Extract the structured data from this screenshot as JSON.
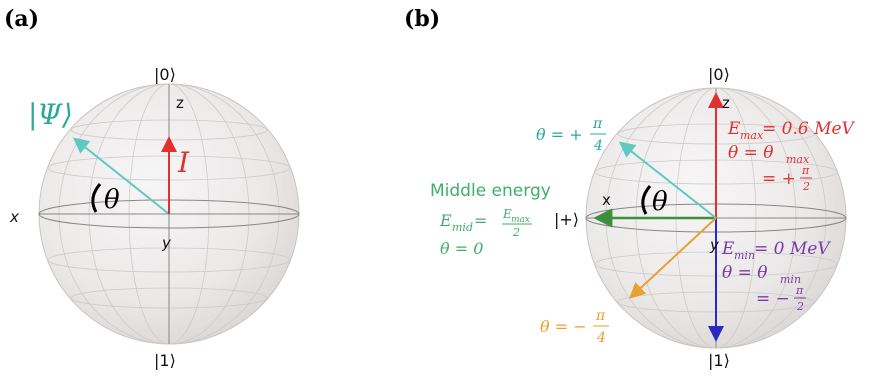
{
  "panel_a": {
    "label": "(a)",
    "ket_top": "|0⟩",
    "ket_bottom": "|1⟩",
    "axis_z": "z",
    "axis_x": "x",
    "axis_y": "y",
    "psi_label": "|Ψ⟩",
    "current_label": "I",
    "theta_label": "θ"
  },
  "panel_b": {
    "label": "(b)",
    "ket_top": "|0⟩",
    "ket_bottom": "|1⟩",
    "ket_plus": "|+⟩",
    "axis_z": "z",
    "axis_x": "x",
    "axis_y": "y",
    "theta_label": "θ",
    "theta_pos": "θ = +",
    "theta_neg": "θ = −",
    "pi": "π",
    "four": "4",
    "two": "2",
    "middle_title": "Middle energy",
    "emid_left": "E",
    "emid_sub": "mid",
    "emid_eq": " = ",
    "emax_frac_num": "E",
    "emax_frac_sub": "max",
    "theta_zero": "θ = 0",
    "emax_line1": "E",
    "emax_sub": "max",
    "emax_val": " = 0.6 MeV",
    "emax_line2": "θ = θ",
    "emax_line3": "= +",
    "emin_line1": "E",
    "emin_sub": "min",
    "emin_val": " = 0 MeV",
    "emin_line2": "θ = θ",
    "emin_line3": "= −"
  },
  "colors": {
    "teal": "#5fc8c0",
    "teal_text": "#2aa89a",
    "red": "#e23030",
    "green": "#3c8f3c",
    "green_text": "#3fae6a",
    "orange": "#e8a030",
    "blue": "#2a2ac0",
    "purple": "#7a3aa8",
    "sphere": "#eeeeee"
  }
}
